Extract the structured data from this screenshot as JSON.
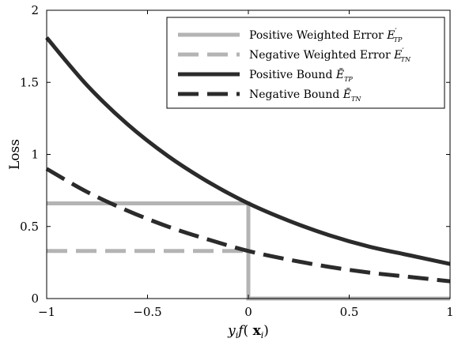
{
  "chart_data": {
    "type": "line",
    "title": "",
    "xlabel": "y_i f( x_i)",
    "ylabel": "Loss",
    "xlim": [
      -1,
      1
    ],
    "ylim": [
      0,
      2
    ],
    "xticks": [
      -1,
      -0.5,
      0,
      0.5,
      1
    ],
    "yticks": [
      0,
      0.5,
      1,
      1.5,
      2
    ],
    "xtick_labels": [
      "−1",
      "−0.5",
      "0",
      "0.5",
      "1"
    ],
    "ytick_labels": [
      "0",
      "0.5",
      "1",
      "1.5",
      "2"
    ],
    "grid": false,
    "legend_position": "top-right",
    "series": [
      {
        "name": "Positive Weighted Error E′_TP",
        "legend_main": "Positive Weighted Error ",
        "legend_symbol": "E",
        "legend_prime": "′",
        "legend_sub": "TP",
        "color": "#b4b4b4",
        "dash": "solid",
        "x": [
          -1,
          0,
          0,
          1
        ],
        "y": [
          0.66,
          0.66,
          0,
          0
        ]
      },
      {
        "name": "Negative Weighted Error E′_TN",
        "legend_main": "Negative Weighted Error ",
        "legend_symbol": "E",
        "legend_prime": "′",
        "legend_sub": "TN",
        "color": "#b4b4b4",
        "dash": "dashed",
        "x": [
          -1,
          0
        ],
        "y": [
          0.33,
          0.33
        ]
      },
      {
        "name": "Positive Bound Ē_TP",
        "legend_main": "Positive Bound  ",
        "legend_symbol": "Ē",
        "legend_prime": "",
        "legend_sub": "TP",
        "color": "#2b2b2b",
        "dash": "solid",
        "x": [
          -1,
          -0.8,
          -0.6,
          -0.4,
          -0.2,
          0,
          0.2,
          0.4,
          0.6,
          0.8,
          1
        ],
        "y": [
          1.81,
          1.48,
          1.21,
          0.99,
          0.81,
          0.66,
          0.54,
          0.44,
          0.36,
          0.3,
          0.24
        ]
      },
      {
        "name": "Negative Bound Ē_TN",
        "legend_main": "Negative Bound  ",
        "legend_symbol": "Ē",
        "legend_prime": "",
        "legend_sub": "TN",
        "color": "#2b2b2b",
        "dash": "dashed",
        "x": [
          -1,
          -0.8,
          -0.6,
          -0.4,
          -0.2,
          0,
          0.2,
          0.4,
          0.6,
          0.8,
          1
        ],
        "y": [
          0.9,
          0.74,
          0.61,
          0.5,
          0.41,
          0.33,
          0.27,
          0.22,
          0.18,
          0.15,
          0.12
        ]
      }
    ]
  }
}
